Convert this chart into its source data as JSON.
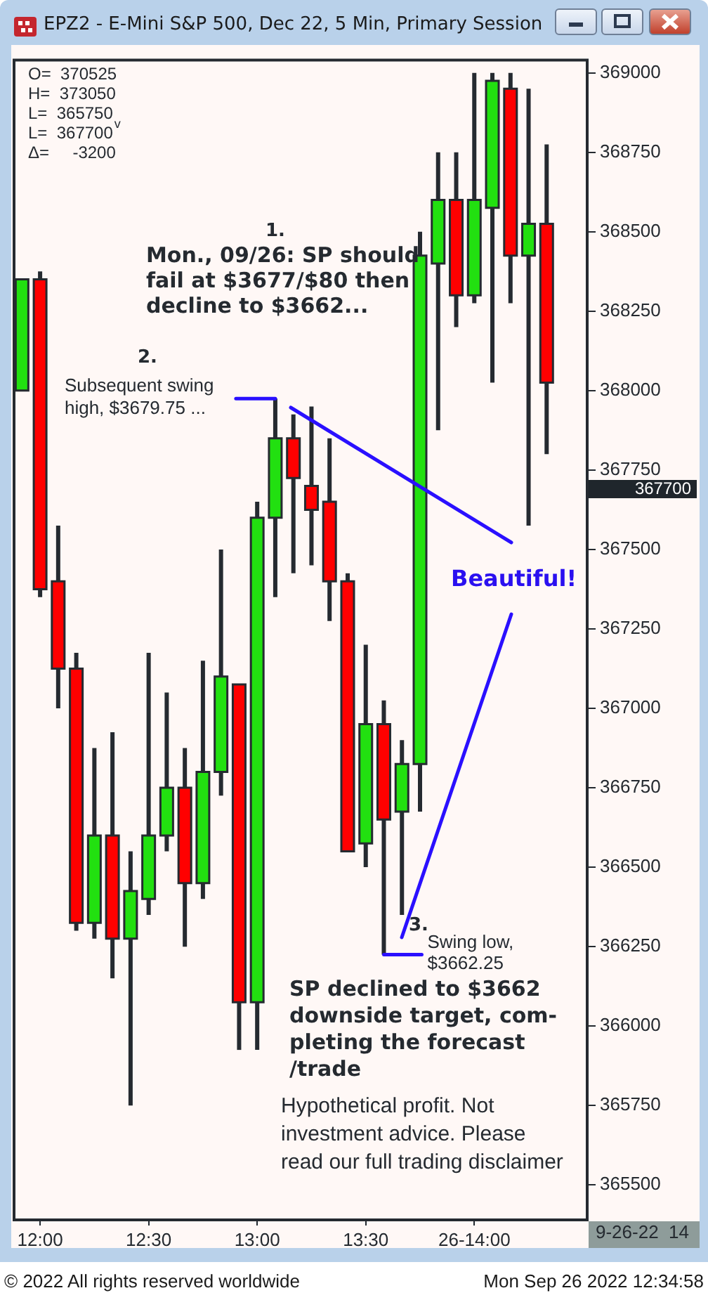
{
  "chart_data": {
    "type": "candlestick",
    "title": "EPZ2 - E-Mini S&P 500, Dec 22, 5 Min, Primary Session",
    "x": [
      11.9167,
      12,
      12.0833,
      12.1667,
      12.25,
      12.3333,
      12.4167,
      12.5,
      12.5833,
      12.6667,
      12.75,
      12.8333,
      12.9167,
      13,
      13.0833,
      13.1667,
      13.25,
      13.3333,
      13.4167,
      13.5,
      13.5833,
      13.6667,
      13.75,
      13.8333,
      13.9167,
      14,
      14.0833,
      14.1667,
      14.25,
      14.3333
    ],
    "ohlc": [
      [
        368000,
        368350,
        368000,
        368350
      ],
      [
        368350,
        368375,
        367350,
        367375
      ],
      [
        367400,
        367575,
        367000,
        367125
      ],
      [
        367125,
        367175,
        366300,
        366325
      ],
      [
        366325,
        366875,
        366275,
        366600
      ],
      [
        366600,
        366925,
        366150,
        366275
      ],
      [
        366275,
        366550,
        365750,
        366425
      ],
      [
        366400,
        367175,
        366350,
        366600
      ],
      [
        366600,
        367050,
        366550,
        366750
      ],
      [
        366750,
        366875,
        366250,
        366450
      ],
      [
        366450,
        367150,
        366400,
        366800
      ],
      [
        366800,
        367500,
        366725,
        367100
      ],
      [
        367075,
        367075,
        365925,
        366075
      ],
      [
        366075,
        367650,
        365925,
        367600
      ],
      [
        367600,
        367975,
        367350,
        367850
      ],
      [
        367850,
        367925,
        367425,
        367725
      ],
      [
        367700,
        367950,
        367450,
        367625
      ],
      [
        367650,
        367850,
        367275,
        367400
      ],
      [
        367400,
        367425,
        366550,
        366550
      ],
      [
        366575,
        367200,
        366500,
        366950
      ],
      [
        366950,
        367025,
        366225,
        366650
      ],
      [
        366675,
        366900,
        366350,
        366825
      ],
      [
        366825,
        368500,
        366675,
        368425
      ],
      [
        368400,
        368750,
        367875,
        368600
      ],
      [
        368600,
        368750,
        368200,
        368300
      ],
      [
        368300,
        369000,
        368275,
        368600
      ],
      [
        368575,
        369000,
        368025,
        368975
      ],
      [
        368950,
        369000,
        368275,
        368425
      ],
      [
        368425,
        368950,
        367575,
        368525
      ],
      [
        368525,
        368775,
        367800,
        368025
      ]
    ],
    "colors": [
      "#22e010",
      "#ff0000",
      "#ff0000",
      "#ff0000",
      "#22e010",
      "#ff0000",
      "#22e010",
      "#22e010",
      "#22e010",
      "#ff0000",
      "#22e010",
      "#22e010",
      "#ff0000",
      "#22e010",
      "#22e010",
      "#ff0000",
      "#ff0000",
      "#ff0000",
      "#ff0000",
      "#22e010",
      "#ff0000",
      "#22e010",
      "#22e010",
      "#22e010",
      "#ff0000",
      "#22e010",
      "#22e010",
      "#ff0000",
      "#22e010",
      "#ff0000"
    ],
    "xlim": [
      11.88,
      14.52
    ],
    "xticks": [
      {
        "value": 12,
        "label": "12:00"
      },
      {
        "value": 12.5,
        "label": "12:30"
      },
      {
        "value": 13,
        "label": "13:00"
      },
      {
        "value": 13.5,
        "label": "13:30"
      },
      {
        "value": 14,
        "label": "26-14:00"
      }
    ],
    "ylim": [
      365390,
      369040
    ],
    "yticks": [
      365500,
      365750,
      366000,
      366250,
      366500,
      366750,
      367000,
      367250,
      367500,
      367750,
      368000,
      368250,
      368500,
      368750,
      369000
    ],
    "legend": false,
    "annotations": [
      "O=  370525",
      "H=  373050",
      "L=  365750",
      "L=  367700$^{v}$",
      "Δ=     -3200",
      "1.",
      "Mon., 09/26: SP should\nfail at $3677/$80 then\ndecline to $3662...",
      "2.",
      {
        "text": "Subsequent swing\nhigh, $3679.75 ...",
        "x": 13.0833,
        "y": 367975
      },
      "Beautiful!",
      {
        "text": "Swing low,\n$3662.25",
        "x": 13.5833,
        "y": 366225
      },
      "3.",
      "SP declined to $3662\ndownside target, com-\npleting the forecast\n/trade",
      "Hypothetical profit. Not\ninvestment advice. Please\nread our full trading disclaimer",
      "367700",
      "9-26-22  14",
      "© 2022 All rights reserved worldwide",
      "Mon Sep 26 2022 12:34:58"
    ]
  }
}
